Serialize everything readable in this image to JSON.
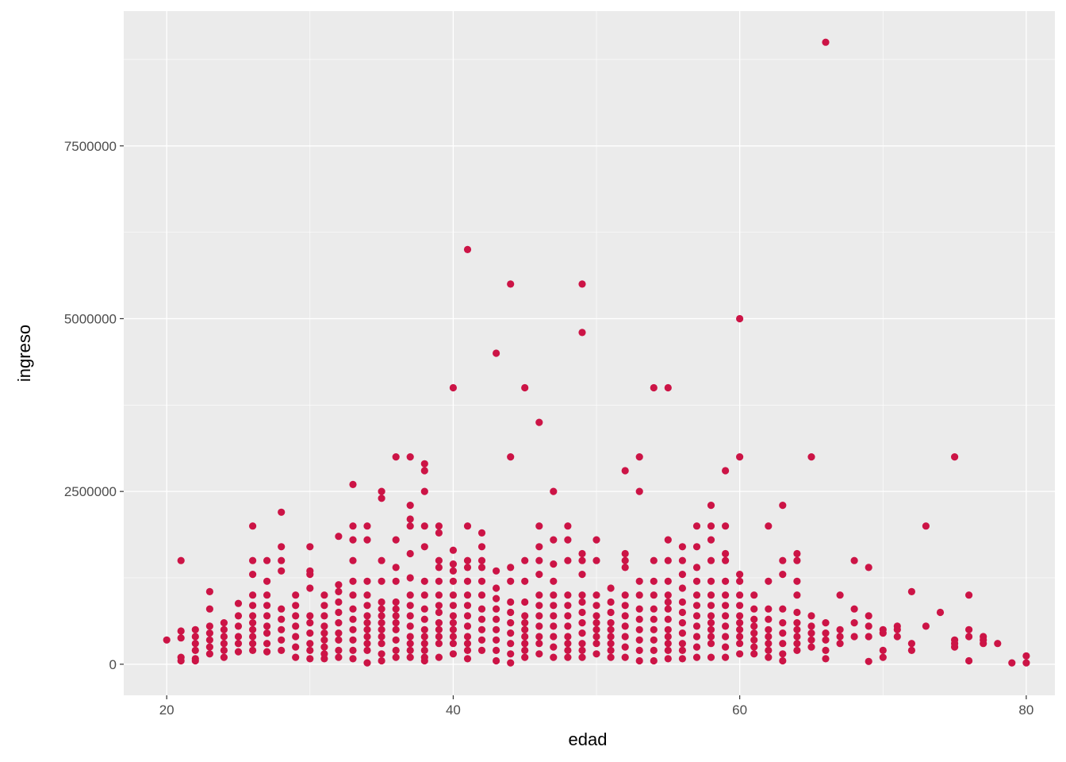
{
  "chart_data": {
    "type": "scatter",
    "xlabel": "edad",
    "ylabel": "ingreso",
    "xlim": [
      17,
      82
    ],
    "ylim": [
      -450000,
      9450000
    ],
    "x_ticks": [
      20,
      40,
      60,
      80
    ],
    "x_tick_labels": [
      "20",
      "40",
      "60",
      "80"
    ],
    "y_ticks": [
      0,
      2500000,
      5000000,
      7500000
    ],
    "y_tick_labels": [
      "0",
      "2500000",
      "5000000",
      "7500000"
    ],
    "grid": true,
    "legend": "none",
    "colors": {
      "panel": "#ebebeb",
      "grid_major": "#ffffff",
      "point": "#cc1446",
      "tick": "#333333"
    },
    "series": [
      {
        "x": [
          20,
          21,
          21,
          21,
          21,
          21,
          22,
          22,
          22,
          22,
          22,
          22,
          23,
          23,
          23,
          23,
          23,
          23,
          23,
          24,
          24,
          24,
          24,
          24,
          24,
          25,
          25,
          25,
          25,
          25,
          25,
          26,
          26,
          26,
          26,
          26,
          26,
          26,
          26,
          26,
          26,
          26,
          27,
          27,
          27,
          27,
          27,
          27,
          27,
          27,
          27,
          28,
          28,
          28,
          28,
          28,
          28,
          28,
          28,
          28,
          29,
          29,
          29,
          29,
          29,
          29,
          29,
          30,
          30,
          30,
          30,
          30,
          30,
          30,
          30,
          30,
          30,
          31,
          31,
          31,
          31,
          31,
          31,
          31,
          31,
          31,
          32,
          32,
          32,
          32,
          32,
          32,
          32,
          32,
          32,
          32,
          33,
          33,
          33,
          33,
          33,
          33,
          33,
          33,
          33,
          33,
          33,
          33,
          34,
          34,
          34,
          34,
          34,
          34,
          34,
          34,
          34,
          34,
          34,
          34,
          35,
          35,
          35,
          35,
          35,
          35,
          35,
          35,
          35,
          35,
          35,
          35,
          35,
          36,
          36,
          36,
          36,
          36,
          36,
          36,
          36,
          36,
          36,
          36,
          36,
          37,
          37,
          37,
          37,
          37,
          37,
          37,
          37,
          37,
          37,
          37,
          37,
          37,
          37,
          38,
          38,
          38,
          38,
          38,
          38,
          38,
          38,
          38,
          38,
          38,
          38,
          38,
          38,
          38,
          39,
          39,
          39,
          39,
          39,
          39,
          39,
          39,
          39,
          39,
          39,
          39,
          39,
          40,
          40,
          40,
          40,
          40,
          40,
          40,
          40,
          40,
          40,
          40,
          40,
          40,
          41,
          41,
          41,
          41,
          41,
          41,
          41,
          41,
          41,
          41,
          41,
          41,
          41,
          42,
          42,
          42,
          42,
          42,
          42,
          42,
          42,
          42,
          42,
          42,
          43,
          43,
          43,
          43,
          43,
          43,
          43,
          43,
          43,
          43,
          44,
          44,
          44,
          44,
          44,
          44,
          44,
          44,
          44,
          44,
          44,
          45,
          45,
          45,
          45,
          45,
          45,
          45,
          45,
          45,
          45,
          45,
          46,
          46,
          46,
          46,
          46,
          46,
          46,
          46,
          46,
          46,
          46,
          46,
          47,
          47,
          47,
          47,
          47,
          47,
          47,
          47,
          47,
          47,
          47,
          48,
          48,
          48,
          48,
          48,
          48,
          48,
          48,
          48,
          48,
          48,
          49,
          49,
          49,
          49,
          49,
          49,
          49,
          49,
          49,
          49,
          49,
          49,
          49,
          50,
          50,
          50,
          50,
          50,
          50,
          50,
          50,
          50,
          50,
          51,
          51,
          51,
          51,
          51,
          51,
          51,
          51,
          51,
          52,
          52,
          52,
          52,
          52,
          52,
          52,
          52,
          52,
          52,
          52,
          53,
          53,
          53,
          53,
          53,
          53,
          53,
          53,
          53,
          53,
          54,
          54,
          54,
          54,
          54,
          54,
          54,
          54,
          54,
          54,
          55,
          55,
          55,
          55,
          55,
          55,
          55,
          55,
          55,
          55,
          55,
          55,
          55,
          56,
          56,
          56,
          56,
          56,
          56,
          56,
          56,
          56,
          56,
          56,
          57,
          57,
          57,
          57,
          57,
          57,
          57,
          57,
          57,
          57,
          57,
          58,
          58,
          58,
          58,
          58,
          58,
          58,
          58,
          58,
          58,
          58,
          58,
          58,
          59,
          59,
          59,
          59,
          59,
          59,
          59,
          59,
          59,
          59,
          59,
          59,
          60,
          60,
          60,
          60,
          60,
          60,
          60,
          60,
          60,
          60,
          60,
          60,
          61,
          61,
          61,
          61,
          61,
          61,
          61,
          61,
          62,
          62,
          62,
          62,
          62,
          62,
          62,
          62,
          62,
          63,
          63,
          63,
          63,
          63,
          63,
          63,
          63,
          63,
          64,
          64,
          64,
          64,
          64,
          64,
          64,
          64,
          64,
          64,
          65,
          65,
          65,
          65,
          65,
          65,
          66,
          66,
          66,
          66,
          66,
          66,
          67,
          67,
          67,
          67,
          68,
          68,
          68,
          68,
          69,
          69,
          69,
          69,
          69,
          70,
          70,
          70,
          70,
          71,
          71,
          71,
          72,
          72,
          72,
          73,
          73,
          74,
          75,
          75,
          75,
          75,
          76,
          76,
          76,
          76,
          77,
          77,
          77,
          78,
          79,
          80,
          80
        ],
        "y": [
          350000,
          1500000,
          480000,
          380000,
          100000,
          50000,
          500000,
          400000,
          300000,
          200000,
          80000,
          50000,
          1050000,
          800000,
          550000,
          450000,
          350000,
          250000,
          150000,
          600000,
          500000,
          400000,
          300000,
          200000,
          100000,
          880000,
          700000,
          550000,
          400000,
          300000,
          180000,
          2000000,
          1500000,
          1300000,
          1000000,
          850000,
          700000,
          600000,
          500000,
          400000,
          300000,
          200000,
          1500000,
          1200000,
          1000000,
          850000,
          700000,
          550000,
          450000,
          300000,
          180000,
          2200000,
          1700000,
          1500000,
          1350000,
          800000,
          650000,
          500000,
          350000,
          200000,
          1000000,
          850000,
          700000,
          550000,
          400000,
          250000,
          100000,
          1700000,
          1350000,
          1300000,
          1100000,
          700000,
          600000,
          450000,
          300000,
          200000,
          80000,
          1000000,
          850000,
          700000,
          550000,
          450000,
          350000,
          250000,
          150000,
          80000,
          1850000,
          1150000,
          1050000,
          900000,
          750000,
          600000,
          450000,
          350000,
          200000,
          100000,
          2600000,
          2000000,
          1800000,
          1500000,
          1200000,
          1000000,
          800000,
          650000,
          500000,
          350000,
          200000,
          80000,
          2000000,
          1800000,
          1200000,
          1000000,
          850000,
          700000,
          600000,
          500000,
          400000,
          300000,
          200000,
          20000,
          2500000,
          2400000,
          1500000,
          1200000,
          900000,
          800000,
          700000,
          600000,
          500000,
          400000,
          300000,
          150000,
          50000,
          3000000,
          1800000,
          1400000,
          1200000,
          900000,
          800000,
          700000,
          600000,
          500000,
          350000,
          200000,
          100000,
          3000000,
          2300000,
          2100000,
          2000000,
          1600000,
          1250000,
          1000000,
          850000,
          700000,
          550000,
          400000,
          300000,
          200000,
          100000,
          2900000,
          2800000,
          2500000,
          2000000,
          1700000,
          1200000,
          1000000,
          800000,
          650000,
          500000,
          400000,
          300000,
          200000,
          100000,
          50000,
          2000000,
          1900000,
          1500000,
          1400000,
          1200000,
          1000000,
          850000,
          750000,
          600000,
          500000,
          400000,
          300000,
          100000,
          4000000,
          1650000,
          1450000,
          1350000,
          1200000,
          1000000,
          850000,
          700000,
          600000,
          500000,
          400000,
          300000,
          150000,
          6000000,
          2000000,
          1500000,
          1400000,
          1200000,
          1000000,
          850000,
          700000,
          550000,
          400000,
          300000,
          200000,
          80000,
          1900000,
          1700000,
          1500000,
          1400000,
          1200000,
          1000000,
          800000,
          650000,
          500000,
          350000,
          200000,
          4500000,
          1350000,
          1100000,
          950000,
          800000,
          650000,
          500000,
          350000,
          200000,
          50000,
          5500000,
          3000000,
          1400000,
          1200000,
          900000,
          750000,
          600000,
          450000,
          300000,
          150000,
          20000,
          4000000,
          1500000,
          1200000,
          900000,
          700000,
          600000,
          500000,
          400000,
          300000,
          200000,
          100000,
          3500000,
          2000000,
          1700000,
          1500000,
          1300000,
          1000000,
          850000,
          700000,
          550000,
          400000,
          300000,
          150000,
          2500000,
          1800000,
          1450000,
          1200000,
          1000000,
          850000,
          700000,
          550000,
          400000,
          250000,
          100000,
          2000000,
          1800000,
          1500000,
          1000000,
          850000,
          700000,
          550000,
          400000,
          300000,
          200000,
          100000,
          5500000,
          4800000,
          1600000,
          1500000,
          1300000,
          1000000,
          900000,
          750000,
          600000,
          450000,
          300000,
          200000,
          100000,
          1800000,
          1500000,
          1000000,
          850000,
          700000,
          600000,
          500000,
          400000,
          300000,
          150000,
          1100000,
          900000,
          750000,
          600000,
          500000,
          400000,
          300000,
          200000,
          100000,
          2800000,
          1600000,
          1500000,
          1400000,
          1000000,
          850000,
          700000,
          550000,
          400000,
          250000,
          100000,
          3000000,
          2500000,
          1200000,
          1000000,
          800000,
          650000,
          500000,
          350000,
          200000,
          50000,
          4000000,
          1500000,
          1200000,
          1000000,
          800000,
          650000,
          500000,
          350000,
          200000,
          50000,
          4000000,
          1800000,
          1500000,
          1200000,
          1000000,
          900000,
          800000,
          650000,
          500000,
          400000,
          300000,
          200000,
          80000,
          1700000,
          1500000,
          1300000,
          1100000,
          900000,
          750000,
          600000,
          450000,
          300000,
          200000,
          80000,
          2000000,
          1700000,
          1400000,
          1200000,
          1000000,
          850000,
          700000,
          550000,
          400000,
          250000,
          100000,
          2300000,
          2000000,
          1800000,
          1500000,
          1200000,
          1000000,
          850000,
          700000,
          600000,
          500000,
          400000,
          300000,
          100000,
          2800000,
          2000000,
          1600000,
          1500000,
          1200000,
          1000000,
          850000,
          700000,
          550000,
          400000,
          250000,
          100000,
          5000000,
          3000000,
          1300000,
          1200000,
          1000000,
          850000,
          700000,
          600000,
          500000,
          400000,
          300000,
          150000,
          1000000,
          800000,
          650000,
          550000,
          450000,
          350000,
          250000,
          150000,
          2000000,
          1200000,
          800000,
          650000,
          500000,
          400000,
          300000,
          200000,
          100000,
          2300000,
          1500000,
          1300000,
          800000,
          600000,
          450000,
          300000,
          150000,
          50000,
          1600000,
          1500000,
          1200000,
          1000000,
          750000,
          600000,
          500000,
          400000,
          300000,
          200000,
          3000000,
          700000,
          550000,
          450000,
          350000,
          250000,
          9000000,
          600000,
          450000,
          350000,
          200000,
          80000,
          1000000,
          500000,
          400000,
          300000,
          1500000,
          800000,
          600000,
          400000,
          1400000,
          700000,
          550000,
          400000,
          40000,
          500000,
          450000,
          200000,
          100000,
          550000,
          500000,
          400000,
          1050000,
          300000,
          200000,
          2000000,
          550000,
          750000,
          3000000,
          350000,
          300000,
          250000,
          1000000,
          500000,
          400000,
          50000,
          400000,
          350000,
          300000,
          300000,
          20000,
          120000,
          20000
        ]
      }
    ]
  }
}
